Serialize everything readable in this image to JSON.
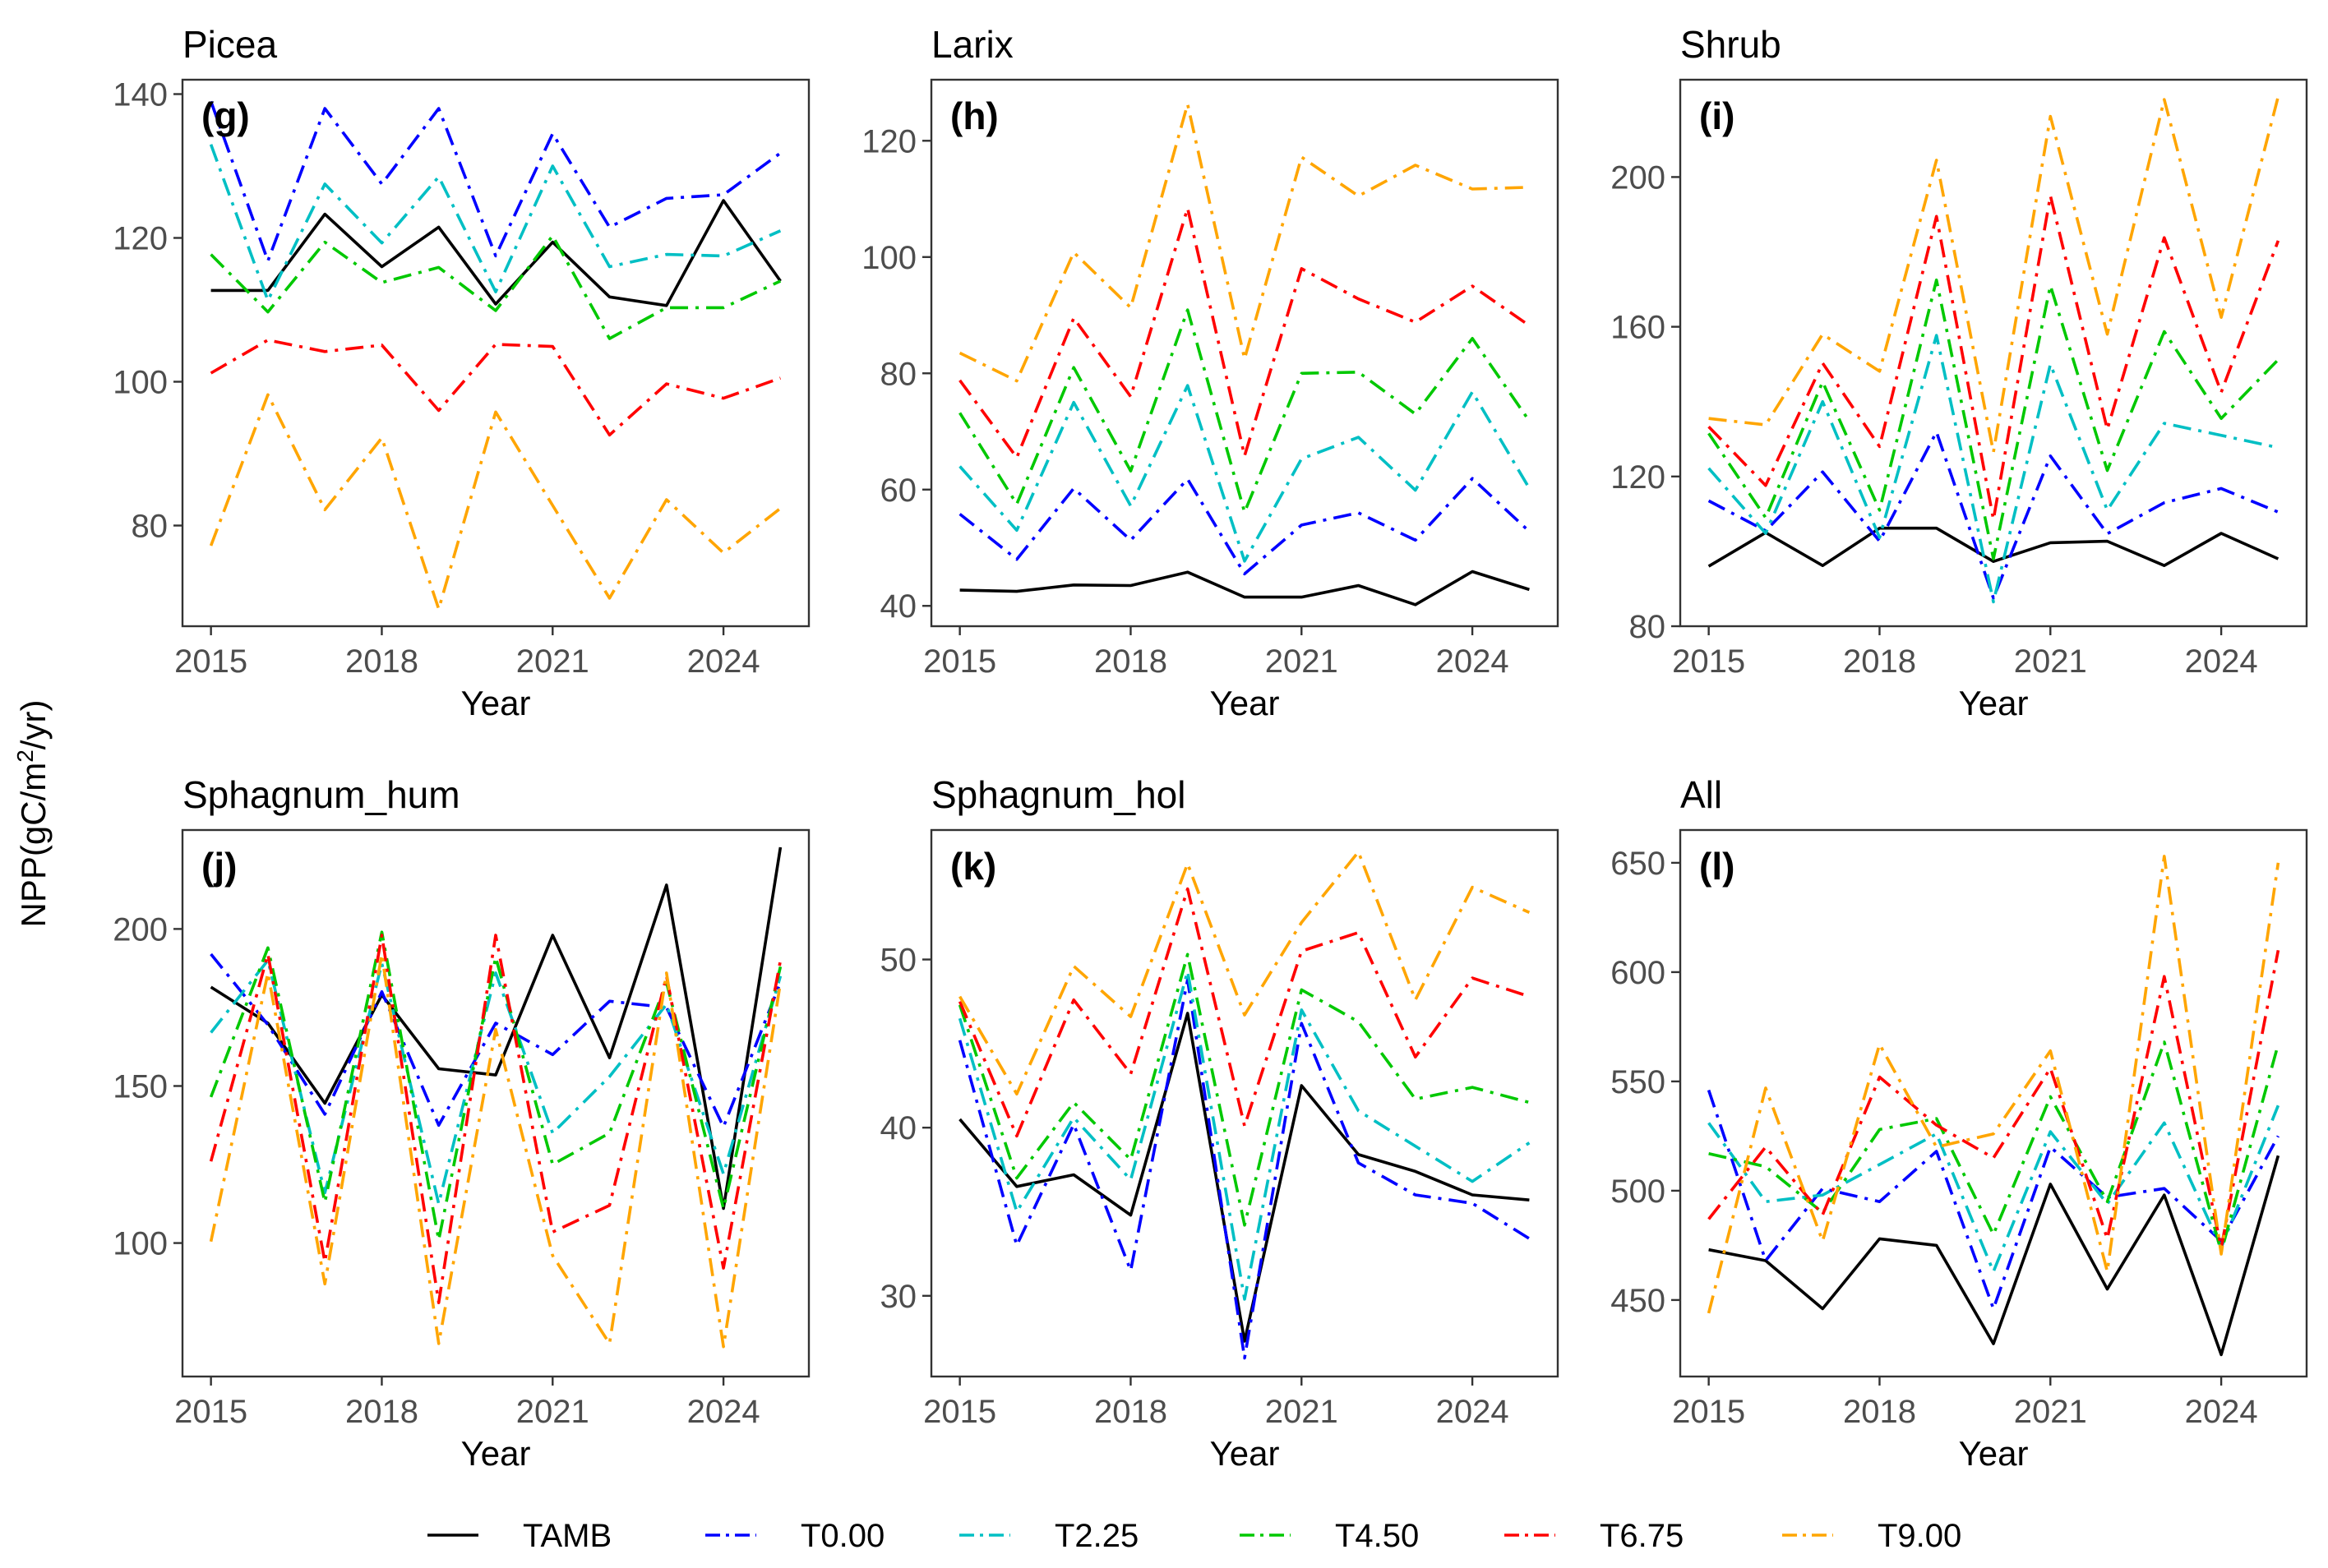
{
  "figure": {
    "y_axis_label_prefix": "NPP(gC/m",
    "y_axis_label_sup": "2",
    "y_axis_label_suffix": "/yr)",
    "x_axis_label": "Year"
  },
  "legend": [
    {
      "name": "TAMB",
      "color": "#000000",
      "dash": "solid"
    },
    {
      "name": "T0.00",
      "color": "#0000ff",
      "dash": "dashdot"
    },
    {
      "name": "T2.25",
      "color": "#00bfc4",
      "dash": "dashdot"
    },
    {
      "name": "T4.50",
      "color": "#00c800",
      "dash": "dashdot"
    },
    {
      "name": "T6.75",
      "color": "#ff0000",
      "dash": "dashdot"
    },
    {
      "name": "T9.00",
      "color": "#ffa500",
      "dash": "dashdot"
    }
  ],
  "chart_data": [
    {
      "type": "line",
      "title": "Picea",
      "tag": "(g)",
      "xlabel": "Year",
      "ylabel": "NPP(gC/m2/yr)",
      "x": [
        2015,
        2016,
        2017,
        2018,
        2019,
        2020,
        2021,
        2022,
        2023,
        2024,
        2025
      ],
      "xlim": [
        2014.5,
        2025.5
      ],
      "xticks": [
        2015,
        2018,
        2021,
        2024
      ],
      "ylim": [
        66,
        142
      ],
      "yticks": [
        80,
        100,
        120,
        140
      ],
      "series": [
        {
          "name": "TAMB",
          "values": [
            112.7,
            112.7,
            123.3,
            116,
            121.5,
            110.8,
            119.4,
            111.8,
            110.6,
            125.2,
            114
          ]
        },
        {
          "name": "T0.00",
          "values": [
            139,
            116.8,
            138,
            127.5,
            138,
            117.5,
            134.5,
            121.5,
            125.5,
            126,
            131.8
          ]
        },
        {
          "name": "T2.25",
          "values": [
            133,
            111.3,
            127.5,
            119.3,
            128.5,
            112.5,
            130,
            116,
            117.7,
            117.5,
            121
          ]
        },
        {
          "name": "T4.50",
          "values": [
            117.7,
            109.7,
            119.4,
            113.8,
            115.9,
            109.9,
            120.3,
            106,
            110.3,
            110.3,
            114
          ]
        },
        {
          "name": "T6.75",
          "values": [
            101.2,
            105.8,
            104.2,
            105.1,
            96,
            105.2,
            104.9,
            92.6,
            99.7,
            97.7,
            100.5
          ]
        },
        {
          "name": "T9.00",
          "values": [
            77.2,
            98.2,
            82.2,
            92.2,
            68.4,
            95.8,
            82.8,
            69.9,
            83.6,
            76.2,
            82.4
          ]
        }
      ]
    },
    {
      "type": "line",
      "title": "Larix",
      "tag": "(h)",
      "xlabel": "Year",
      "ylabel": "NPP(gC/m2/yr)",
      "x": [
        2015,
        2016,
        2017,
        2018,
        2019,
        2020,
        2021,
        2022,
        2023,
        2024,
        2025
      ],
      "xlim": [
        2014.5,
        2025.5
      ],
      "xticks": [
        2015,
        2018,
        2021,
        2024
      ],
      "ylim": [
        36.5,
        130.5
      ],
      "yticks": [
        40,
        60,
        80,
        100,
        120
      ],
      "series": [
        {
          "name": "TAMB",
          "values": [
            42.7,
            42.5,
            43.6,
            43.5,
            45.8,
            41.5,
            41.5,
            43.5,
            40.2,
            45.9,
            42.8
          ]
        },
        {
          "name": "T0.00",
          "values": [
            55.8,
            48,
            60.2,
            51.3,
            61.8,
            45.5,
            53.9,
            56,
            51.3,
            61.9,
            52.8
          ]
        },
        {
          "name": "T2.25",
          "values": [
            64,
            53,
            75,
            57.2,
            77.9,
            47.7,
            65.3,
            69,
            59.9,
            76.8,
            60.2
          ]
        },
        {
          "name": "T4.50",
          "values": [
            73.2,
            57.5,
            81,
            63.2,
            90.9,
            56.1,
            80,
            80.2,
            73,
            86,
            71.8
          ]
        },
        {
          "name": "T6.75",
          "values": [
            78.8,
            65.5,
            89.5,
            76,
            108.4,
            65.8,
            98,
            92.8,
            88.8,
            95,
            88.2
          ]
        },
        {
          "name": "T9.00",
          "values": [
            83.5,
            78.7,
            100.8,
            91.3,
            126.3,
            82.5,
            117.2,
            110.5,
            115.8,
            111.7,
            112
          ]
        }
      ]
    },
    {
      "type": "line",
      "title": "Shrub",
      "tag": "(i)",
      "xlabel": "Year",
      "ylabel": "NPP(gC/m2/yr)",
      "x": [
        2015,
        2016,
        2017,
        2018,
        2019,
        2020,
        2021,
        2022,
        2023,
        2024,
        2025
      ],
      "xlim": [
        2014.5,
        2025.5
      ],
      "xticks": [
        2015,
        2018,
        2021,
        2024
      ],
      "ylim": [
        80,
        226
      ],
      "yticks": [
        80,
        120,
        160,
        200
      ],
      "series": [
        {
          "name": "TAMB",
          "values": [
            96,
            105,
            96.2,
            106.2,
            106.2,
            97.3,
            102.3,
            102.7,
            96.2,
            104.8,
            98
          ]
        },
        {
          "name": "T0.00",
          "values": [
            113.5,
            105.5,
            121.2,
            102.7,
            131.9,
            87.5,
            125.5,
            104.7,
            113,
            116.8,
            110.5
          ]
        },
        {
          "name": "T2.25",
          "values": [
            122.2,
            104.8,
            140,
            103.7,
            157.7,
            86.5,
            150,
            111,
            134.2,
            131,
            127.7
          ]
        },
        {
          "name": "T4.50",
          "values": [
            131.5,
            109,
            145.3,
            111,
            172.5,
            98,
            171,
            121.6,
            158.7,
            135.5,
            151.2
          ]
        },
        {
          "name": "T6.75",
          "values": [
            133.3,
            117.6,
            150.3,
            128,
            189.5,
            108.5,
            195,
            132.6,
            183.8,
            142.5,
            183
          ]
        },
        {
          "name": "T9.00",
          "values": [
            135.5,
            133.8,
            158,
            148.1,
            204.5,
            126.5,
            216.2,
            158,
            220.7,
            162.5,
            221.5
          ]
        }
      ]
    },
    {
      "type": "line",
      "title": "Sphagnum_hum",
      "tag": "(j)",
      "xlabel": "Year",
      "ylabel": "NPP(gC/m2/yr)",
      "x": [
        2015,
        2016,
        2017,
        2018,
        2019,
        2020,
        2021,
        2022,
        2023,
        2024,
        2025
      ],
      "xlim": [
        2014.5,
        2025.5
      ],
      "xticks": [
        2015,
        2018,
        2021,
        2024
      ],
      "ylim": [
        57.5,
        231.5
      ],
      "yticks": [
        100,
        150,
        200
      ],
      "series": [
        {
          "name": "TAMB",
          "values": [
            181.5,
            170,
            144.5,
            179,
            155.5,
            153.5,
            198,
            159,
            214,
            111,
            226
          ]
        },
        {
          "name": "T0.00",
          "values": [
            192,
            169.5,
            141,
            180,
            137.5,
            170,
            160,
            177,
            175,
            137,
            183
          ]
        },
        {
          "name": "T2.25",
          "values": [
            167,
            190,
            116,
            189,
            112.5,
            186,
            135,
            153,
            176,
            122,
            185
          ]
        },
        {
          "name": "T4.50",
          "values": [
            146.5,
            194,
            113,
            199,
            101,
            191,
            125,
            135,
            183,
            111,
            188
          ]
        },
        {
          "name": "T6.75",
          "values": [
            126,
            192,
            94,
            198,
            81,
            198,
            103.5,
            112,
            185,
            92,
            190
          ]
        },
        {
          "name": "T9.00",
          "values": [
            100.5,
            186,
            87,
            192,
            68,
            168,
            96,
            68,
            186,
            67,
            183
          ]
        }
      ]
    },
    {
      "type": "line",
      "title": "Sphagnum_hol",
      "tag": "(k)",
      "xlabel": "Year",
      "ylabel": "NPP(gC/m2/yr)",
      "x": [
        2015,
        2016,
        2017,
        2018,
        2019,
        2020,
        2021,
        2022,
        2023,
        2024,
        2025
      ],
      "xlim": [
        2014.5,
        2025.5
      ],
      "xticks": [
        2015,
        2018,
        2021,
        2024
      ],
      "ylim": [
        25.2,
        57.7
      ],
      "yticks": [
        30,
        40,
        50
      ],
      "series": [
        {
          "name": "TAMB",
          "values": [
            40.5,
            36.5,
            37.2,
            34.8,
            46.8,
            27.3,
            42.5,
            38.4,
            37.4,
            36,
            35.7
          ]
        },
        {
          "name": "T0.00",
          "values": [
            45.2,
            33,
            40.2,
            31.5,
            48.8,
            26.3,
            46.2,
            37.9,
            36,
            35.5,
            33.4
          ]
        },
        {
          "name": "T2.25",
          "values": [
            46.5,
            35,
            40.6,
            36.9,
            49.3,
            29.8,
            47,
            41,
            38.9,
            36.8,
            39.1
          ]
        },
        {
          "name": "T4.50",
          "values": [
            47.3,
            37,
            41.5,
            38.1,
            50.3,
            34.2,
            48.2,
            46.3,
            41.7,
            42.4,
            41.5
          ]
        },
        {
          "name": "T6.75",
          "values": [
            47.5,
            39.5,
            47.6,
            43.2,
            54.2,
            40.1,
            50.5,
            51.6,
            44.2,
            48.9,
            47.8
          ]
        },
        {
          "name": "T9.00",
          "values": [
            47.8,
            42,
            49.6,
            46.6,
            55.7,
            46.7,
            52.2,
            56.4,
            47.6,
            54.3,
            52.8
          ]
        }
      ]
    },
    {
      "type": "line",
      "title": "All",
      "tag": "(l)",
      "xlabel": "Year",
      "ylabel": "NPP(gC/m2/yr)",
      "x": [
        2015,
        2016,
        2017,
        2018,
        2019,
        2020,
        2021,
        2022,
        2023,
        2024,
        2025
      ],
      "xlim": [
        2014.5,
        2025.5
      ],
      "xticks": [
        2015,
        2018,
        2021,
        2024
      ],
      "ylim": [
        415,
        665
      ],
      "yticks": [
        450,
        500,
        550,
        600,
        650
      ],
      "series": [
        {
          "name": "TAMB",
          "values": [
            473,
            468,
            446,
            478,
            475,
            430,
            503,
            455,
            498,
            425,
            516
          ]
        },
        {
          "name": "T0.00",
          "values": [
            546,
            468,
            501,
            495,
            518,
            446,
            520,
            497,
            501,
            477,
            525
          ]
        },
        {
          "name": "T2.25",
          "values": [
            531,
            495,
            498,
            512,
            526,
            463,
            527,
            494,
            531,
            474,
            539
          ]
        },
        {
          "name": "T4.50",
          "values": [
            517,
            511,
            490,
            528,
            533,
            480,
            543,
            495,
            568,
            472,
            567
          ]
        },
        {
          "name": "T6.75",
          "values": [
            487,
            520,
            489,
            552,
            530,
            515,
            556,
            478,
            598,
            474,
            610
          ]
        },
        {
          "name": "T9.00",
          "values": [
            444,
            547,
            477,
            567,
            520,
            526,
            564,
            463,
            653,
            471,
            650
          ]
        }
      ]
    }
  ]
}
